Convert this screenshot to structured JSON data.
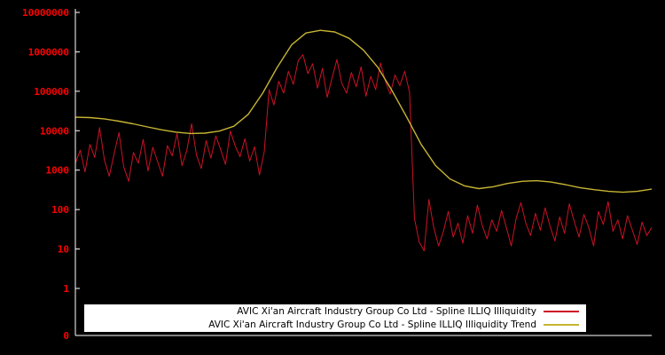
{
  "page": {
    "background": "#000000"
  },
  "chart_data": {
    "type": "line",
    "title": "",
    "xlabel": "",
    "ylabel": "",
    "yscale": "log",
    "grid": false,
    "x_axis": {
      "labels_visible": false,
      "note": "time axis, evenly spaced samples, no tick labels shown"
    },
    "y_ticks": [
      "10000000",
      "1000000",
      "100000",
      "10000",
      "1000",
      "100",
      "10",
      "1",
      "0"
    ],
    "ylim_log10": [
      0,
      7
    ],
    "axis_label_color": "#ff0000",
    "spine_color": "#ffffff",
    "legend": {
      "position": "bottom-center",
      "background": "#ffffff",
      "text_color": "#000000"
    },
    "series": [
      {
        "name": "AVIC Xi'an Aircraft Industry Group Co Ltd - Spline ILLIQ Illiquidity",
        "color": "#cc1226",
        "stroke_width": 1,
        "values": [
          1500,
          3200,
          900,
          4500,
          2100,
          12000,
          1800,
          700,
          2600,
          9000,
          1200,
          520,
          2800,
          1500,
          6000,
          950,
          3800,
          1600,
          700,
          4200,
          2300,
          8500,
          1300,
          3100,
          15000,
          2400,
          1100,
          5600,
          2000,
          7400,
          3300,
          1400,
          9800,
          4100,
          2200,
          6300,
          1700,
          3900,
          760,
          2900,
          110000,
          45000,
          180000,
          90000,
          320000,
          150000,
          600000,
          850000,
          280000,
          500000,
          120000,
          380000,
          70000,
          220000,
          640000,
          160000,
          90000,
          300000,
          130000,
          420000,
          75000,
          240000,
          110000,
          520000,
          180000,
          85000,
          260000,
          140000,
          320000,
          95000,
          60,
          15,
          9,
          180,
          35,
          12,
          28,
          90,
          20,
          45,
          14,
          70,
          25,
          130,
          40,
          18,
          55,
          28,
          95,
          35,
          12,
          60,
          150,
          45,
          22,
          80,
          30,
          110,
          38,
          16,
          65,
          25,
          140,
          50,
          20,
          75,
          35,
          12,
          90,
          42,
          160,
          28,
          55,
          18,
          70,
          30,
          13,
          48,
          22,
          35
        ]
      },
      {
        "name": "AVIC Xi'an Aircraft Industry Group Co Ltd - Spline ILLIQ Illiquidity Trend",
        "color": "#c6b433",
        "stroke_width": 1.4,
        "values": [
          22000,
          21500,
          20000,
          17500,
          15000,
          12500,
          10500,
          9200,
          8500,
          8700,
          9800,
          13000,
          26000,
          90000,
          400000,
          1500000,
          3000000,
          3500000,
          3200000,
          2200000,
          1100000,
          400000,
          100000,
          22000,
          4500,
          1300,
          600,
          400,
          340,
          380,
          460,
          520,
          540,
          500,
          430,
          360,
          320,
          290,
          275,
          290,
          330
        ]
      }
    ]
  }
}
